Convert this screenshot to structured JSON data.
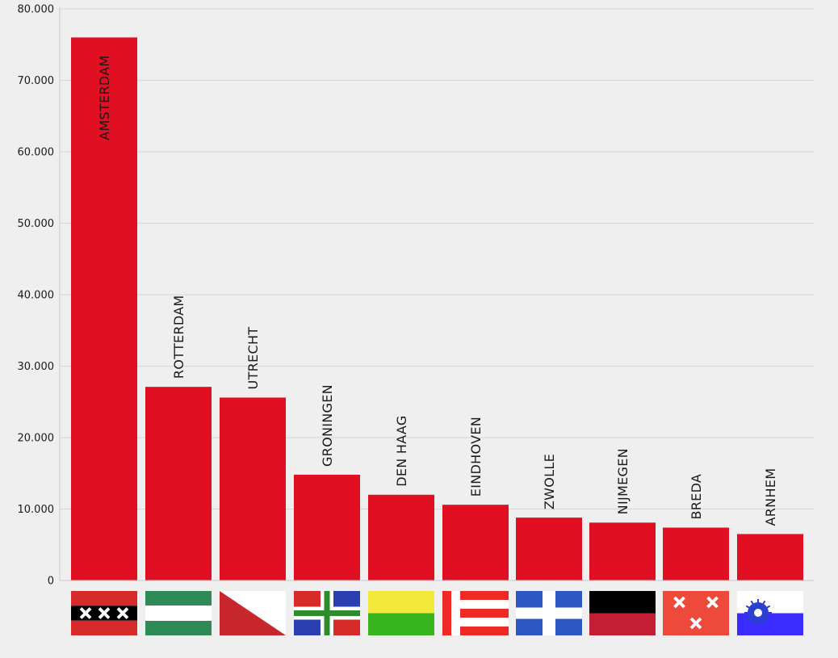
{
  "colors": {
    "background": "#efefef",
    "bar": "#e10f22",
    "grid": "#d6d6d6",
    "axis": "#c8c8c8",
    "text": "#1a1a1a"
  },
  "chart_data": {
    "type": "bar",
    "title": "",
    "xlabel": "",
    "ylabel": "",
    "ylim": [
      0,
      80000
    ],
    "yticks": [
      0,
      10000,
      20000,
      30000,
      40000,
      50000,
      60000,
      70000,
      80000
    ],
    "ytick_labels": [
      "0",
      "10.000",
      "20.000",
      "30.000",
      "40.000",
      "50.000",
      "60.000",
      "70.000",
      "80.000"
    ],
    "grid": true,
    "bar_labels_orientation": "vertical",
    "categories": [
      "AMSTERDAM",
      "ROTTERDAM",
      "UTRECHT",
      "GRONINGEN",
      "DEN HAAG",
      "EINDHOVEN",
      "ZWOLLE",
      "NIJMEGEN",
      "BREDA",
      "ARNHEM"
    ],
    "values": [
      76000,
      27100,
      25600,
      14800,
      12000,
      10600,
      8800,
      8100,
      7400,
      6500
    ],
    "flag_icons": [
      "amsterdam-flag-icon",
      "rotterdam-flag-icon",
      "utrecht-flag-icon",
      "groningen-flag-icon",
      "den-haag-flag-icon",
      "eindhoven-flag-icon",
      "zwolle-flag-icon",
      "nijmegen-flag-icon",
      "breda-flag-icon",
      "arnhem-flag-icon"
    ]
  }
}
